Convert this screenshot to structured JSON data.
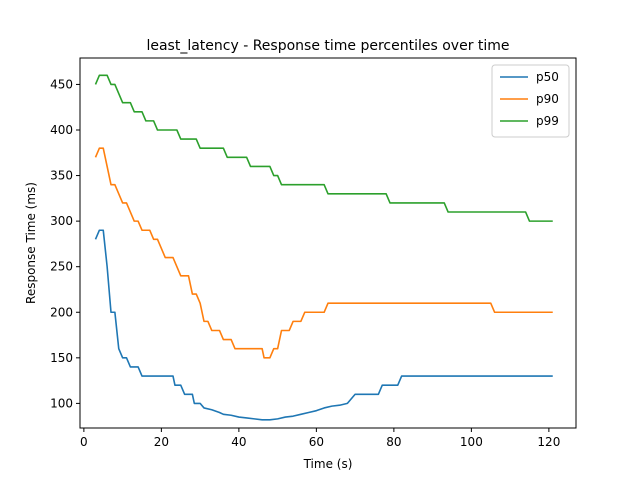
{
  "chart_data": {
    "type": "line",
    "title": "least_latency - Response time percentiles over time",
    "xlabel": "Time (s)",
    "ylabel": "Response Time (ms)",
    "xlim": [
      -1,
      127
    ],
    "ylim": [
      73,
      479
    ],
    "xticks": [
      0,
      20,
      40,
      60,
      80,
      100,
      120
    ],
    "yticks": [
      100,
      150,
      200,
      250,
      300,
      350,
      400,
      450
    ],
    "grid": false,
    "legend_position": "top-right",
    "series": [
      {
        "name": "p50",
        "color": "#1f77b4",
        "points": [
          [
            3,
            280
          ],
          [
            4,
            290
          ],
          [
            5,
            290
          ],
          [
            6,
            250
          ],
          [
            7,
            200
          ],
          [
            8,
            200
          ],
          [
            9,
            160
          ],
          [
            10,
            150
          ],
          [
            11,
            150
          ],
          [
            12,
            140
          ],
          [
            14,
            140
          ],
          [
            15,
            130
          ],
          [
            23,
            130
          ],
          [
            23.5,
            120
          ],
          [
            25,
            120
          ],
          [
            26,
            110
          ],
          [
            28,
            110
          ],
          [
            28.5,
            100
          ],
          [
            30,
            100
          ],
          [
            31,
            95
          ],
          [
            33,
            93
          ],
          [
            35,
            90
          ],
          [
            36,
            88
          ],
          [
            38,
            87
          ],
          [
            40,
            85
          ],
          [
            42,
            84
          ],
          [
            44,
            83
          ],
          [
            46,
            82
          ],
          [
            48,
            82
          ],
          [
            50,
            83
          ],
          [
            52,
            85
          ],
          [
            54,
            86
          ],
          [
            56,
            88
          ],
          [
            58,
            90
          ],
          [
            60,
            92
          ],
          [
            62,
            95
          ],
          [
            64,
            97
          ],
          [
            66,
            98
          ],
          [
            68,
            100
          ],
          [
            70,
            110
          ],
          [
            76,
            110
          ],
          [
            77,
            120
          ],
          [
            81,
            120
          ],
          [
            82,
            130
          ],
          [
            121,
            130
          ]
        ]
      },
      {
        "name": "p90",
        "color": "#ff7f0e",
        "points": [
          [
            3,
            370
          ],
          [
            4,
            380
          ],
          [
            5,
            380
          ],
          [
            6,
            360
          ],
          [
            7,
            340
          ],
          [
            8,
            340
          ],
          [
            9,
            330
          ],
          [
            10,
            320
          ],
          [
            11,
            320
          ],
          [
            12,
            310
          ],
          [
            13,
            300
          ],
          [
            14,
            300
          ],
          [
            15,
            290
          ],
          [
            17,
            290
          ],
          [
            18,
            280
          ],
          [
            19,
            280
          ],
          [
            20,
            270
          ],
          [
            21,
            260
          ],
          [
            23,
            260
          ],
          [
            24,
            250
          ],
          [
            25,
            240
          ],
          [
            27,
            240
          ],
          [
            28,
            220
          ],
          [
            29,
            220
          ],
          [
            30,
            210
          ],
          [
            31,
            190
          ],
          [
            32,
            190
          ],
          [
            33,
            180
          ],
          [
            35,
            180
          ],
          [
            36,
            170
          ],
          [
            38,
            170
          ],
          [
            39,
            160
          ],
          [
            46,
            160
          ],
          [
            46.5,
            150
          ],
          [
            48,
            150
          ],
          [
            49,
            160
          ],
          [
            50,
            160
          ],
          [
            51,
            180
          ],
          [
            53,
            180
          ],
          [
            54,
            190
          ],
          [
            56,
            190
          ],
          [
            57,
            200
          ],
          [
            62,
            200
          ],
          [
            63,
            210
          ],
          [
            105,
            210
          ],
          [
            106,
            200
          ],
          [
            121,
            200
          ]
        ]
      },
      {
        "name": "p99",
        "color": "#2ca02c",
        "points": [
          [
            3,
            450
          ],
          [
            4,
            460
          ],
          [
            6,
            460
          ],
          [
            7,
            450
          ],
          [
            8,
            450
          ],
          [
            9,
            440
          ],
          [
            10,
            430
          ],
          [
            12,
            430
          ],
          [
            13,
            420
          ],
          [
            15,
            420
          ],
          [
            16,
            410
          ],
          [
            18,
            410
          ],
          [
            19,
            400
          ],
          [
            24,
            400
          ],
          [
            25,
            390
          ],
          [
            29,
            390
          ],
          [
            30,
            380
          ],
          [
            36,
            380
          ],
          [
            37,
            370
          ],
          [
            42,
            370
          ],
          [
            43,
            360
          ],
          [
            48,
            360
          ],
          [
            49,
            350
          ],
          [
            50,
            350
          ],
          [
            51,
            340
          ],
          [
            62,
            340
          ],
          [
            63,
            330
          ],
          [
            78,
            330
          ],
          [
            79,
            320
          ],
          [
            93,
            320
          ],
          [
            94,
            310
          ],
          [
            114,
            310
          ],
          [
            115,
            300
          ],
          [
            121,
            300
          ]
        ]
      }
    ]
  }
}
